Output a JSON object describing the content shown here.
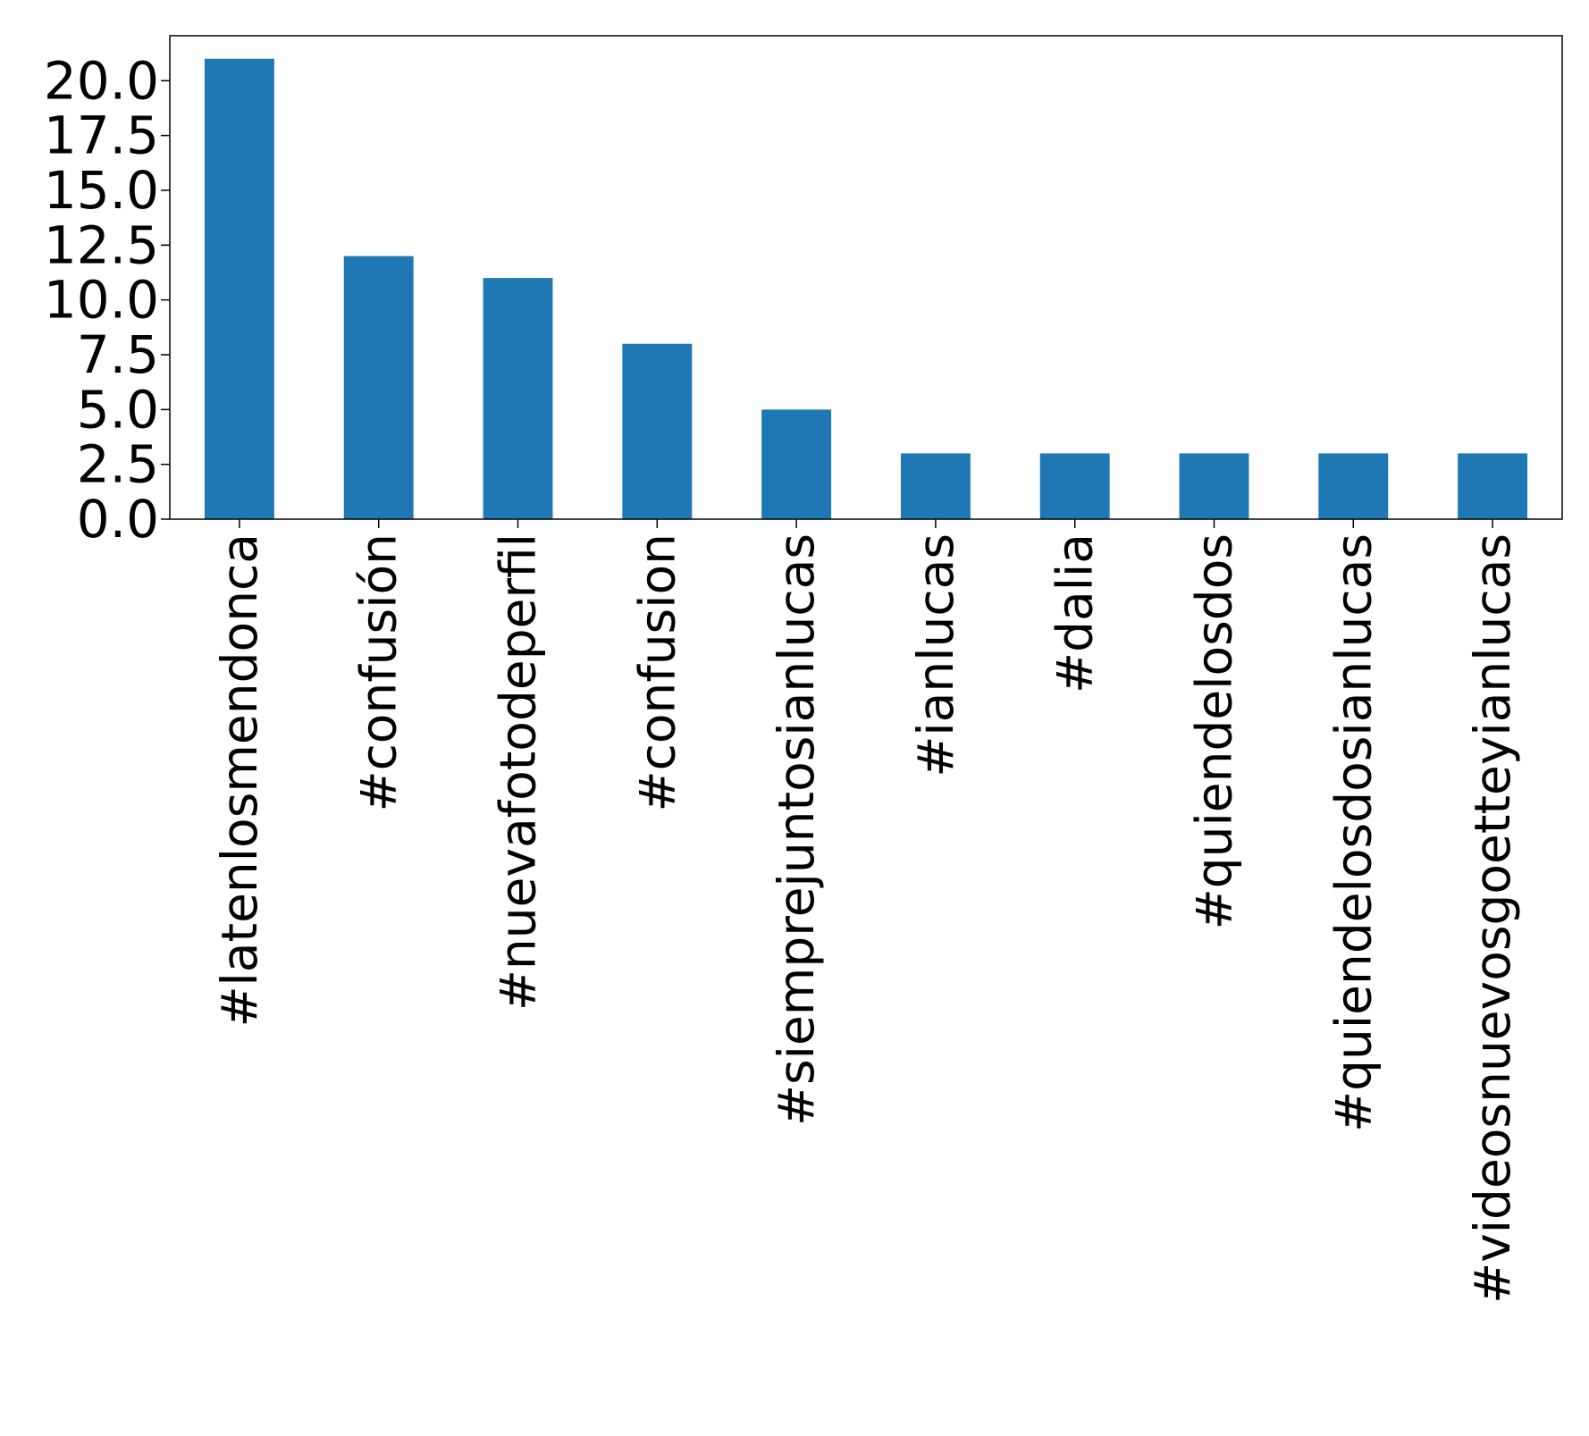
{
  "chart_data": {
    "type": "bar",
    "categories": [
      "#latenlosmendonca",
      "#confusión",
      "#nuevafotodeperfil",
      "#confusion",
      "#siemprejuntosianlucas",
      "#ianlucas",
      "#dalia",
      "#quiendelosdos",
      "#quiendelosdosianlucas",
      "#videosnuevosgoetteyianlucas"
    ],
    "values": [
      21,
      12,
      11,
      8,
      5,
      3,
      3,
      3,
      3,
      3
    ],
    "y_ticks": [
      "0.0",
      "2.5",
      "5.0",
      "7.5",
      "10.0",
      "12.5",
      "15.0",
      "17.5",
      "20.0"
    ],
    "ylim": [
      0,
      22.05
    ],
    "title": "",
    "xlabel": "",
    "ylabel": "",
    "grid": false,
    "legend": "none",
    "bar_color": "#1f77b4"
  }
}
